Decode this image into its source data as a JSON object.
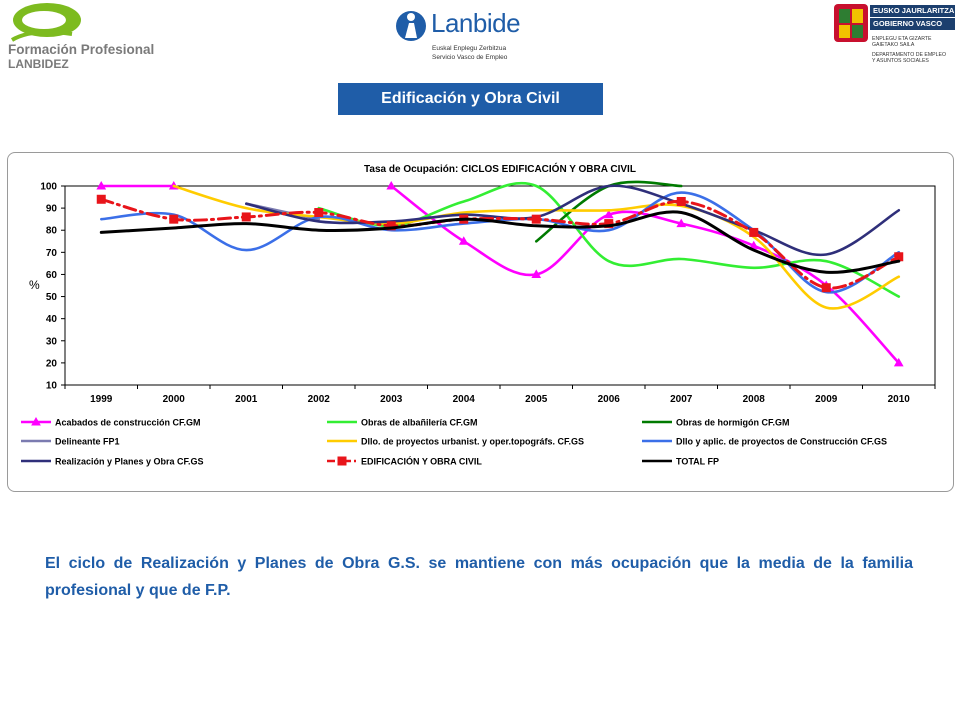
{
  "header": {
    "fp_logo": {
      "line1": "Formación Profesional",
      "line2": "LANBIDEZ"
    },
    "lanbide_logo": {
      "word": "Lanbide",
      "sub1": "Euskal Enplegu Zerbitzua",
      "sub2": "Servicio Vasco de Empleo"
    },
    "gov_logo": {
      "line1": "EUSKO JAURLARITZA",
      "line2": "GOBIERNO VASCO",
      "line3": "ENPLEGU ETA GIZARTE",
      "line4": "GAIETAKO SAILA",
      "line5": "DEPARTAMENTO DE EMPLEO",
      "line6": "Y ASUNTOS SOCIALES"
    }
  },
  "page_title": "Edificación y Obra Civil",
  "chart_data": {
    "type": "line",
    "title": "Tasa de Ocupación: CICLOS EDIFICACIÓN Y OBRA CIVIL",
    "ylabel": "%",
    "xlabel": "",
    "ylim": [
      10,
      100
    ],
    "yticks": [
      10,
      20,
      30,
      40,
      50,
      60,
      70,
      80,
      90,
      100
    ],
    "grid": false,
    "legend_position": "bottom",
    "categories": [
      "1999",
      "2000",
      "2001",
      "2002",
      "2003",
      "2004",
      "2005",
      "2006",
      "2007",
      "2008",
      "2009",
      "2010"
    ],
    "series": [
      {
        "name": "Acabados de construcción CF.GM",
        "color": "#ff00ff",
        "marker": "triangle",
        "dash": "solid",
        "values": [
          100,
          100,
          null,
          null,
          100,
          75,
          60,
          87,
          83,
          73,
          55,
          20
        ]
      },
      {
        "name": "Obras de albañilería CF.GM",
        "color": "#33ee33",
        "marker": "none",
        "dash": "solid",
        "values": [
          null,
          null,
          null,
          90,
          82,
          93,
          100,
          66,
          67,
          63,
          66,
          50
        ]
      },
      {
        "name": "Obras de hormigón CF.GM",
        "color": "#007a00",
        "marker": "none",
        "dash": "solid",
        "values": [
          null,
          null,
          null,
          null,
          null,
          null,
          75,
          100,
          100,
          null,
          null,
          null
        ]
      },
      {
        "name": "Delineante FP1",
        "color": "#7b7bb0",
        "marker": "none",
        "dash": "solid",
        "values": [
          null,
          null,
          92,
          85,
          null,
          null,
          null,
          null,
          null,
          null,
          null,
          null
        ]
      },
      {
        "name": "Dllo. de proyectos urbanist. y oper.topográfs. CF.GS",
        "color": "#ffcc00",
        "marker": "none",
        "dash": "solid",
        "values": [
          null,
          100,
          90,
          86,
          83,
          88,
          89,
          89,
          91,
          77,
          45,
          59
        ]
      },
      {
        "name": "Dllo y aplic. de proyectos de Construcción CF.GS",
        "color": "#3b6fe8",
        "marker": "none",
        "dash": "solid",
        "values": [
          85,
          87,
          71,
          86,
          80,
          83,
          85,
          80,
          97,
          80,
          52,
          70
        ]
      },
      {
        "name": "Realización y Planes y Obra CF.GS",
        "color": "#2f2f7a",
        "marker": "none",
        "dash": "solid",
        "values": [
          null,
          null,
          92,
          84,
          84,
          87,
          86,
          100,
          92,
          80,
          69,
          89
        ]
      },
      {
        "name": "EDIFICACIÓN Y OBRA CIVIL",
        "color": "#e8141a",
        "marker": "square",
        "dash": "dashdot",
        "values": [
          94,
          85,
          86,
          88,
          82,
          85,
          85,
          83,
          93,
          79,
          54,
          68
        ]
      },
      {
        "name": "TOTAL FP",
        "color": "#000000",
        "marker": "none",
        "dash": "solid",
        "values": [
          79,
          81,
          83,
          80,
          81,
          85,
          82,
          82,
          88,
          71,
          61,
          66
        ]
      }
    ]
  },
  "note": "El ciclo de Realización y Planes de Obra G.S. se mantiene con más ocupación que la media de la familia profesional y que de F.P."
}
